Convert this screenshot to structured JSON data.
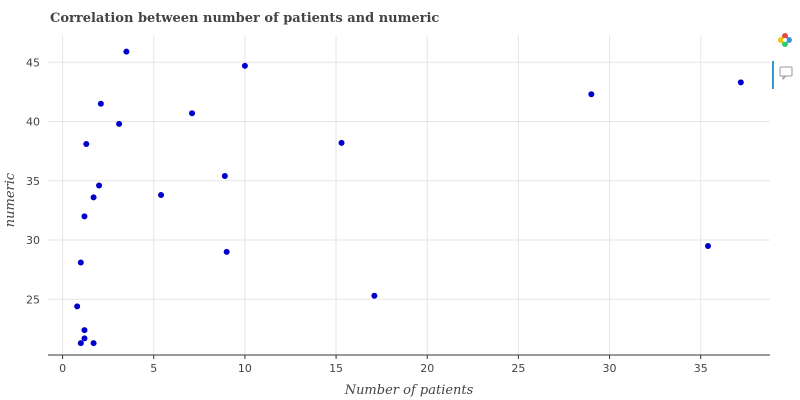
{
  "chart_data": {
    "type": "scatter",
    "title": "Correlation between number of patients and numeric",
    "xlabel": "Number of patients",
    "ylabel": "numeric",
    "xlim": [
      -0.8,
      38.8
    ],
    "ylim": [
      20.3,
      47.3
    ],
    "x_ticks": [
      0,
      5,
      10,
      15,
      20,
      25,
      30,
      35
    ],
    "y_ticks": [
      25,
      30,
      35,
      40,
      45
    ],
    "grid": true,
    "legend": "none",
    "points": [
      {
        "x": 3.5,
        "y": 45.9
      },
      {
        "x": 10.0,
        "y": 44.7
      },
      {
        "x": 2.1,
        "y": 41.5
      },
      {
        "x": 7.1,
        "y": 40.7
      },
      {
        "x": 3.1,
        "y": 39.8
      },
      {
        "x": 1.3,
        "y": 38.1
      },
      {
        "x": 15.3,
        "y": 38.2
      },
      {
        "x": 2.0,
        "y": 34.6
      },
      {
        "x": 8.9,
        "y": 35.4
      },
      {
        "x": 1.7,
        "y": 33.6
      },
      {
        "x": 5.4,
        "y": 33.8
      },
      {
        "x": 1.2,
        "y": 32.0
      },
      {
        "x": 9.0,
        "y": 29.0
      },
      {
        "x": 1.0,
        "y": 28.1
      },
      {
        "x": 35.4,
        "y": 29.5
      },
      {
        "x": 17.1,
        "y": 25.3
      },
      {
        "x": 0.8,
        "y": 24.4
      },
      {
        "x": 1.2,
        "y": 22.4
      },
      {
        "x": 1.2,
        "y": 21.7
      },
      {
        "x": 1.0,
        "y": 21.3
      },
      {
        "x": 1.7,
        "y": 21.3
      },
      {
        "x": 29.0,
        "y": 42.3
      },
      {
        "x": 37.2,
        "y": 43.3
      }
    ]
  }
}
